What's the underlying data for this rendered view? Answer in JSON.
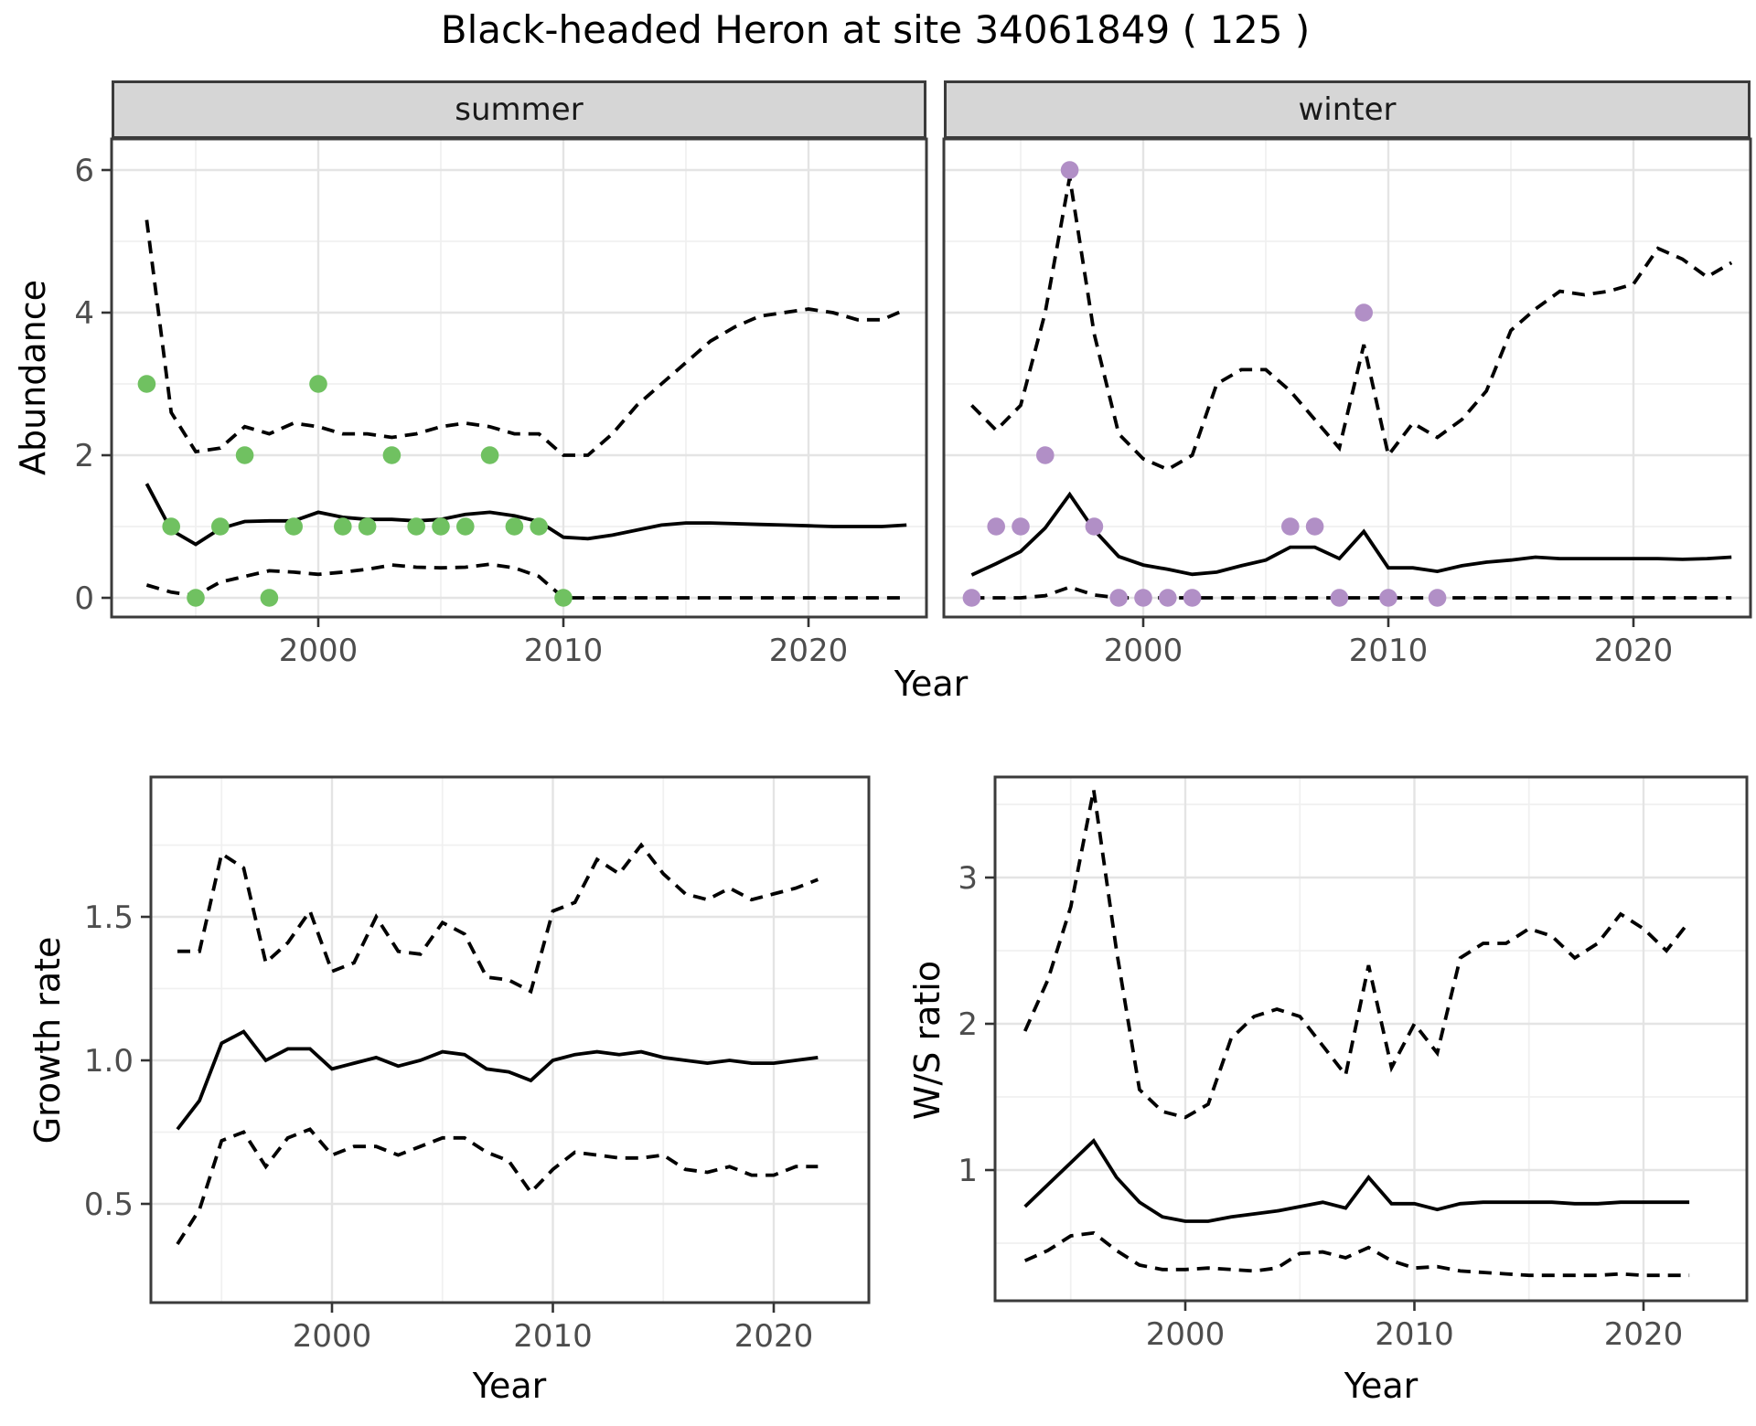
{
  "title": "Black-headed Heron at site 34061849 ( 125 )",
  "labels": {
    "facet_summer": "summer",
    "facet_winter": "winter",
    "abundance": "Abundance",
    "year": "Year",
    "growth_rate": "Growth rate",
    "ws_ratio": "W/S ratio"
  },
  "colors": {
    "line": "#000000",
    "summer_points": "#70c161",
    "winter_points": "#b18fc6",
    "grid_major": "#e4e4e4",
    "grid_minor": "#f0f0f0",
    "panel_border": "#3b3b3b",
    "strip_bg": "#d6d6d6",
    "tick_text": "#4d4d4d",
    "tick_mark": "#333333"
  },
  "chart_data": {
    "type": "line",
    "title": "Black-headed Heron at site 34061849 ( 125 )",
    "xlabel": "Year",
    "grid": true,
    "legend": false,
    "panels": [
      {
        "key": "abundance_summer",
        "facet": "summer",
        "ylabel": "Abundance",
        "xlabel": "Year",
        "x_range": [
          1991.9,
          2024.8
        ],
        "y_range": [
          -0.27,
          6.44
        ],
        "x_ticks": [
          [
            2000,
            "2000"
          ],
          [
            2010,
            "2010"
          ],
          [
            2020,
            "2020"
          ]
        ],
        "x_minor": [
          1995,
          2005,
          2015
        ],
        "y_ticks": [
          [
            0,
            "0"
          ],
          [
            2,
            "2"
          ],
          [
            4,
            "4"
          ],
          [
            6,
            "6"
          ]
        ],
        "y_minor": [
          1,
          3,
          5
        ],
        "x": [
          1993,
          1994,
          1995,
          1996,
          1997,
          1998,
          1999,
          2000,
          2001,
          2002,
          2003,
          2004,
          2005,
          2006,
          2007,
          2008,
          2009,
          2010,
          2011,
          2012,
          2013,
          2014,
          2015,
          2016,
          2017,
          2018,
          2019,
          2020,
          2021,
          2022,
          2023,
          2024
        ],
        "series": [
          {
            "name": "median",
            "style": "solid",
            "values": [
              1.6,
              0.95,
              0.75,
              0.97,
              1.07,
              1.08,
              1.08,
              1.2,
              1.13,
              1.1,
              1.1,
              1.08,
              1.1,
              1.17,
              1.2,
              1.15,
              1.07,
              0.85,
              0.83,
              0.88,
              0.95,
              1.02,
              1.05,
              1.05,
              1.04,
              1.03,
              1.02,
              1.01,
              1.0,
              1.0,
              1.0,
              1.02
            ]
          },
          {
            "name": "upper_ci",
            "style": "dashed",
            "values": [
              5.3,
              2.6,
              2.05,
              2.1,
              2.4,
              2.3,
              2.45,
              2.4,
              2.3,
              2.3,
              2.25,
              2.3,
              2.4,
              2.45,
              2.4,
              2.3,
              2.3,
              2.0,
              2.0,
              2.3,
              2.7,
              3.0,
              3.3,
              3.6,
              3.8,
              3.95,
              4.0,
              4.05,
              4.0,
              3.9,
              3.9,
              4.05
            ]
          },
          {
            "name": "lower_ci",
            "style": "dashed",
            "values": [
              0.18,
              0.08,
              0.03,
              0.22,
              0.3,
              0.38,
              0.36,
              0.33,
              0.36,
              0.4,
              0.46,
              0.43,
              0.42,
              0.43,
              0.47,
              0.42,
              0.3,
              0.0,
              0.0,
              0.0,
              0.0,
              0.0,
              0.0,
              0.0,
              0.0,
              0.0,
              0.0,
              0.0,
              0.0,
              0.0,
              0.0,
              0.0
            ]
          }
        ],
        "points": {
          "name": "observed_counts_summer",
          "color_key": "summer_points",
          "data": [
            [
              1993,
              3
            ],
            [
              1994,
              1
            ],
            [
              1995,
              0
            ],
            [
              1996,
              1
            ],
            [
              1997,
              2
            ],
            [
              1998,
              0
            ],
            [
              1999,
              1
            ],
            [
              2000,
              3
            ],
            [
              2001,
              1
            ],
            [
              2002,
              1
            ],
            [
              2003,
              2
            ],
            [
              2004,
              1
            ],
            [
              2005,
              1
            ],
            [
              2006,
              1
            ],
            [
              2007,
              2
            ],
            [
              2008,
              1
            ],
            [
              2009,
              1
            ],
            [
              2010,
              0
            ]
          ]
        }
      },
      {
        "key": "abundance_winter",
        "facet": "winter",
        "ylabel": "Abundance",
        "xlabel": "Year",
        "x_range": [
          1991.9,
          2024.8
        ],
        "y_range": [
          -0.27,
          6.44
        ],
        "x_ticks": [
          [
            2000,
            "2000"
          ],
          [
            2010,
            "2010"
          ],
          [
            2020,
            "2020"
          ]
        ],
        "x_minor": [
          1995,
          2005,
          2015
        ],
        "y_ticks": [
          [
            0,
            "0"
          ],
          [
            2,
            "2"
          ],
          [
            4,
            "4"
          ],
          [
            6,
            "6"
          ]
        ],
        "y_minor": [
          1,
          3,
          5
        ],
        "x": [
          1993,
          1994,
          1995,
          1996,
          1997,
          1998,
          1999,
          2000,
          2001,
          2002,
          2003,
          2004,
          2005,
          2006,
          2007,
          2008,
          2009,
          2010,
          2011,
          2012,
          2013,
          2014,
          2015,
          2016,
          2017,
          2018,
          2019,
          2020,
          2021,
          2022,
          2023,
          2024
        ],
        "series": [
          {
            "name": "median",
            "style": "solid",
            "values": [
              0.32,
              0.48,
              0.65,
              0.98,
              1.45,
              0.95,
              0.58,
              0.46,
              0.4,
              0.33,
              0.36,
              0.45,
              0.53,
              0.71,
              0.71,
              0.55,
              0.93,
              0.42,
              0.42,
              0.37,
              0.45,
              0.5,
              0.53,
              0.57,
              0.55,
              0.55,
              0.55,
              0.55,
              0.55,
              0.54,
              0.55,
              0.57
            ]
          },
          {
            "name": "upper_ci",
            "style": "dashed",
            "values": [
              2.7,
              2.35,
              2.7,
              4.0,
              5.9,
              3.7,
              2.3,
              1.95,
              1.8,
              2.0,
              3.0,
              3.2,
              3.2,
              2.9,
              2.5,
              2.1,
              3.55,
              2.0,
              2.45,
              2.25,
              2.5,
              2.9,
              3.75,
              4.05,
              4.3,
              4.25,
              4.3,
              4.4,
              4.9,
              4.75,
              4.5,
              4.7
            ]
          },
          {
            "name": "lower_ci",
            "style": "dashed",
            "values": [
              0.0,
              0.0,
              0.0,
              0.03,
              0.15,
              0.04,
              0.0,
              0.0,
              0.0,
              0.0,
              0.0,
              0.0,
              0.0,
              0.0,
              0.0,
              0.0,
              0.0,
              0.0,
              0.0,
              0.0,
              0.0,
              0.0,
              0.0,
              0.0,
              0.0,
              0.0,
              0.0,
              0.0,
              0.0,
              0.0,
              0.0,
              0.0
            ]
          }
        ],
        "points": {
          "name": "observed_counts_winter",
          "color_key": "winter_points",
          "data": [
            [
              1993,
              0
            ],
            [
              1994,
              1
            ],
            [
              1995,
              1
            ],
            [
              1996,
              2
            ],
            [
              1997,
              6
            ],
            [
              1998,
              1
            ],
            [
              1999,
              0
            ],
            [
              2000,
              0
            ],
            [
              2001,
              0
            ],
            [
              2002,
              0
            ],
            [
              2006,
              1
            ],
            [
              2007,
              1
            ],
            [
              2008,
              0
            ],
            [
              2009,
              4
            ],
            [
              2010,
              0
            ],
            [
              2012,
              0
            ]
          ]
        }
      },
      {
        "key": "growth_rate",
        "facet": null,
        "ylabel": "Growth rate",
        "xlabel": "Year",
        "x_range": [
          1991.8,
          2023.5
        ],
        "y_range": [
          0.16,
          1.99
        ],
        "x_ticks": [
          [
            2000,
            "2000"
          ],
          [
            2010,
            "2010"
          ],
          [
            2020,
            "2020"
          ]
        ],
        "x_minor": [
          1995,
          2005,
          2015
        ],
        "y_ticks": [
          [
            0.5,
            "0.5"
          ],
          [
            1.0,
            "1.0"
          ],
          [
            1.5,
            "1.5"
          ]
        ],
        "y_minor": [
          0.75,
          1.25,
          1.75
        ],
        "x": [
          1993,
          1994,
          1995,
          1996,
          1997,
          1998,
          1999,
          2000,
          2001,
          2002,
          2003,
          2004,
          2005,
          2006,
          2007,
          2008,
          2009,
          2010,
          2011,
          2012,
          2013,
          2014,
          2015,
          2016,
          2017,
          2018,
          2019,
          2020,
          2021,
          2022
        ],
        "series": [
          {
            "name": "median",
            "style": "solid",
            "values": [
              0.76,
              0.86,
              1.06,
              1.1,
              1.0,
              1.04,
              1.04,
              0.97,
              0.99,
              1.01,
              0.98,
              1.0,
              1.03,
              1.02,
              0.97,
              0.96,
              0.93,
              1.0,
              1.02,
              1.03,
              1.02,
              1.03,
              1.01,
              1.0,
              0.99,
              1.0,
              0.99,
              0.99,
              1.0,
              1.01
            ]
          },
          {
            "name": "upper_ci",
            "style": "dashed",
            "values": [
              1.38,
              1.38,
              1.72,
              1.67,
              1.34,
              1.41,
              1.52,
              1.31,
              1.34,
              1.5,
              1.38,
              1.37,
              1.48,
              1.44,
              1.29,
              1.28,
              1.24,
              1.52,
              1.55,
              1.7,
              1.65,
              1.75,
              1.65,
              1.58,
              1.56,
              1.6,
              1.56,
              1.58,
              1.6,
              1.63
            ]
          },
          {
            "name": "lower_ci",
            "style": "dashed",
            "values": [
              0.36,
              0.48,
              0.72,
              0.75,
              0.63,
              0.73,
              0.76,
              0.67,
              0.7,
              0.7,
              0.67,
              0.7,
              0.73,
              0.73,
              0.68,
              0.65,
              0.54,
              0.62,
              0.68,
              0.67,
              0.66,
              0.66,
              0.67,
              0.62,
              0.61,
              0.63,
              0.6,
              0.6,
              0.63,
              0.63
            ]
          }
        ],
        "points": null
      },
      {
        "key": "ws_ratio",
        "facet": null,
        "ylabel": "W/S ratio",
        "xlabel": "Year",
        "x_range": [
          1991.7,
          2024.5
        ],
        "y_range": [
          0.11,
          3.69
        ],
        "x_ticks": [
          [
            2000,
            "2000"
          ],
          [
            2010,
            "2010"
          ],
          [
            2020,
            "2020"
          ]
        ],
        "x_minor": [
          1995,
          2005,
          2015
        ],
        "y_ticks": [
          [
            1,
            "1"
          ],
          [
            2,
            "2"
          ],
          [
            3,
            "3"
          ]
        ],
        "y_minor": [
          0.5,
          1.5,
          2.5,
          3.5
        ],
        "x": [
          1993,
          1994,
          1995,
          1996,
          1997,
          1998,
          1999,
          2000,
          2001,
          2002,
          2003,
          2004,
          2005,
          2006,
          2007,
          2008,
          2009,
          2010,
          2011,
          2012,
          2013,
          2014,
          2015,
          2016,
          2017,
          2018,
          2019,
          2020,
          2021,
          2022
        ],
        "series": [
          {
            "name": "median",
            "style": "solid",
            "values": [
              0.75,
              0.9,
              1.05,
              1.2,
              0.95,
              0.78,
              0.68,
              0.65,
              0.65,
              0.68,
              0.7,
              0.72,
              0.75,
              0.78,
              0.74,
              0.95,
              0.77,
              0.77,
              0.73,
              0.77,
              0.78,
              0.78,
              0.78,
              0.78,
              0.77,
              0.77,
              0.78,
              0.78,
              0.78,
              0.78
            ]
          },
          {
            "name": "upper_ci",
            "style": "dashed",
            "values": [
              1.95,
              2.3,
              2.8,
              3.6,
              2.5,
              1.55,
              1.4,
              1.36,
              1.45,
              1.9,
              2.05,
              2.1,
              2.05,
              1.85,
              1.65,
              2.4,
              1.7,
              2.0,
              1.8,
              2.45,
              2.55,
              2.55,
              2.65,
              2.6,
              2.45,
              2.55,
              2.75,
              2.65,
              2.5,
              2.7
            ]
          },
          {
            "name": "lower_ci",
            "style": "dashed",
            "values": [
              0.38,
              0.45,
              0.55,
              0.57,
              0.45,
              0.35,
              0.32,
              0.32,
              0.33,
              0.32,
              0.31,
              0.33,
              0.43,
              0.44,
              0.4,
              0.47,
              0.38,
              0.33,
              0.34,
              0.31,
              0.3,
              0.29,
              0.28,
              0.28,
              0.28,
              0.28,
              0.29,
              0.28,
              0.28,
              0.28
            ]
          }
        ],
        "points": null
      }
    ]
  }
}
